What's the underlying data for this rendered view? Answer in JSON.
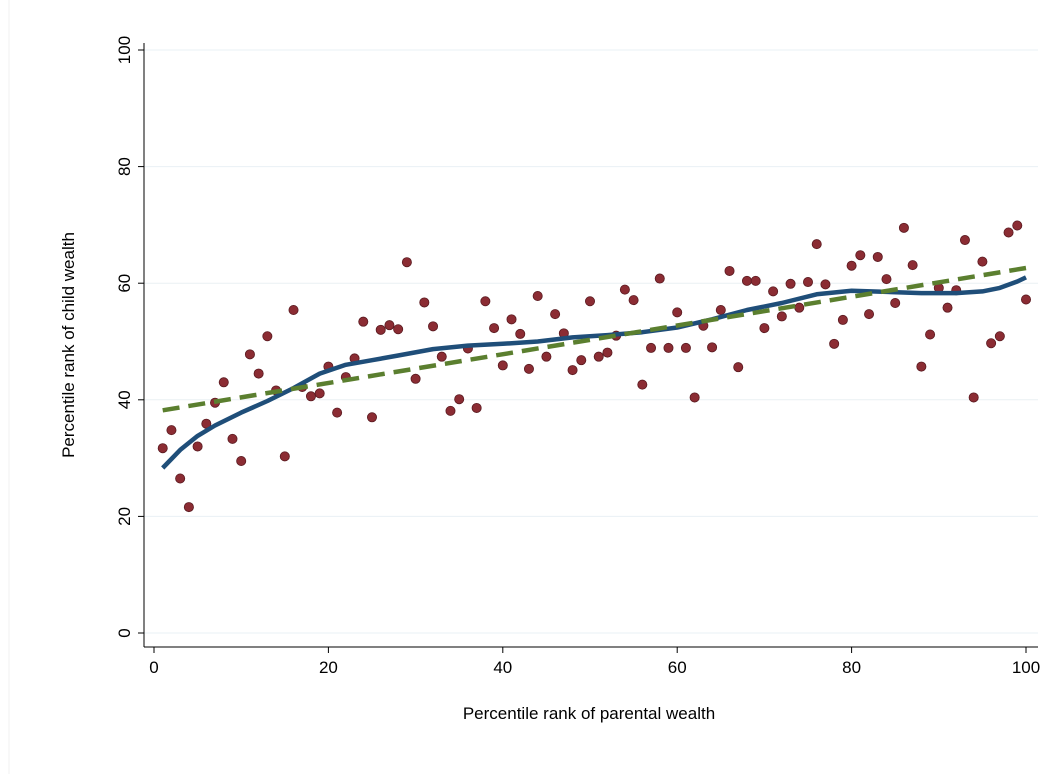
{
  "chart_data": {
    "type": "scatter",
    "title": "",
    "xlabel": "Percentile rank of parental wealth",
    "ylabel": "Percentile rank of child wealth",
    "xlim": [
      0,
      100
    ],
    "ylim": [
      0,
      100
    ],
    "xticks": [
      0,
      20,
      40,
      60,
      80,
      100
    ],
    "yticks": [
      0,
      20,
      40,
      60,
      80,
      100
    ],
    "grid": true,
    "colors": {
      "points": "#8b2c33",
      "smooth": "#1f4e79",
      "linear": "#5b7f2f",
      "grid": "#eaf0f4"
    },
    "series": [
      {
        "type": "scatter",
        "x": [
          1,
          2,
          3,
          4,
          5,
          6,
          7,
          8,
          9,
          10,
          11,
          12,
          13,
          14,
          15,
          16,
          17,
          18,
          19,
          20,
          21,
          22,
          23,
          24,
          25,
          26,
          27,
          28,
          29,
          30,
          31,
          32,
          33,
          34,
          35,
          36,
          37,
          38,
          39,
          40,
          41,
          42,
          43,
          44,
          45,
          46,
          47,
          48,
          49,
          50,
          51,
          52,
          53,
          54,
          55,
          56,
          57,
          58,
          59,
          60,
          61,
          62,
          63,
          64,
          65,
          66,
          67,
          68,
          69,
          70,
          71,
          72,
          73,
          74,
          75,
          76,
          77,
          78,
          79,
          80,
          81,
          82,
          83,
          84,
          85,
          86,
          87,
          88,
          89,
          90,
          91,
          92,
          93,
          94,
          95,
          96,
          97,
          98,
          99,
          100
        ],
        "y": [
          31.7,
          34.8,
          26.5,
          21.6,
          32,
          35.9,
          39.5,
          43,
          33.3,
          29.5,
          47.8,
          44.5,
          50.9,
          41.6,
          30.3,
          55.4,
          42.2,
          40.6,
          41.1,
          45.7,
          37.8,
          43.9,
          47.1,
          53.4,
          37,
          52,
          52.8,
          52.1,
          63.6,
          43.6,
          56.7,
          52.6,
          47.4,
          38.1,
          40.1,
          48.8,
          38.6,
          56.9,
          52.3,
          45.9,
          53.8,
          51.3,
          45.3,
          57.8,
          47.4,
          54.7,
          51.4,
          45.1,
          46.8,
          56.9,
          47.4,
          48.1,
          51,
          58.9,
          57.1,
          42.6,
          48.9,
          60.8,
          48.9,
          55,
          48.9,
          40.4,
          52.7,
          49,
          55.4,
          62.1,
          45.6,
          60.4,
          60.4,
          52.3,
          58.6,
          54.3,
          59.9,
          55.8,
          60.2,
          66.7,
          59.8,
          49.6,
          53.7,
          63,
          64.8,
          54.7,
          64.5,
          60.7,
          56.6,
          69.5,
          63.1,
          45.7,
          51.2,
          59.2,
          55.8,
          58.8,
          67.4,
          40.4,
          63.7,
          49.7,
          50.9,
          68.7,
          69.9,
          57.2
        ]
      },
      {
        "type": "line",
        "style": "solid",
        "x": [
          1,
          3,
          5,
          7,
          10,
          13,
          16,
          19,
          22,
          25,
          28,
          32,
          36,
          40,
          44,
          48,
          52,
          56,
          60,
          64,
          68,
          72,
          76,
          80,
          84,
          88,
          92,
          95,
          97,
          99,
          100
        ],
        "y": [
          28.3,
          31.4,
          33.8,
          35.6,
          37.8,
          39.8,
          42,
          44.5,
          46,
          46.8,
          47.6,
          48.7,
          49.3,
          49.6,
          50,
          50.7,
          51.1,
          51.6,
          52.4,
          53.8,
          55.4,
          56.6,
          58.1,
          58.7,
          58.5,
          58.3,
          58.3,
          58.6,
          59.2,
          60.3,
          61
        ]
      },
      {
        "type": "line",
        "style": "dashed",
        "x": [
          1,
          100
        ],
        "y": [
          38.2,
          62.6
        ]
      }
    ]
  }
}
